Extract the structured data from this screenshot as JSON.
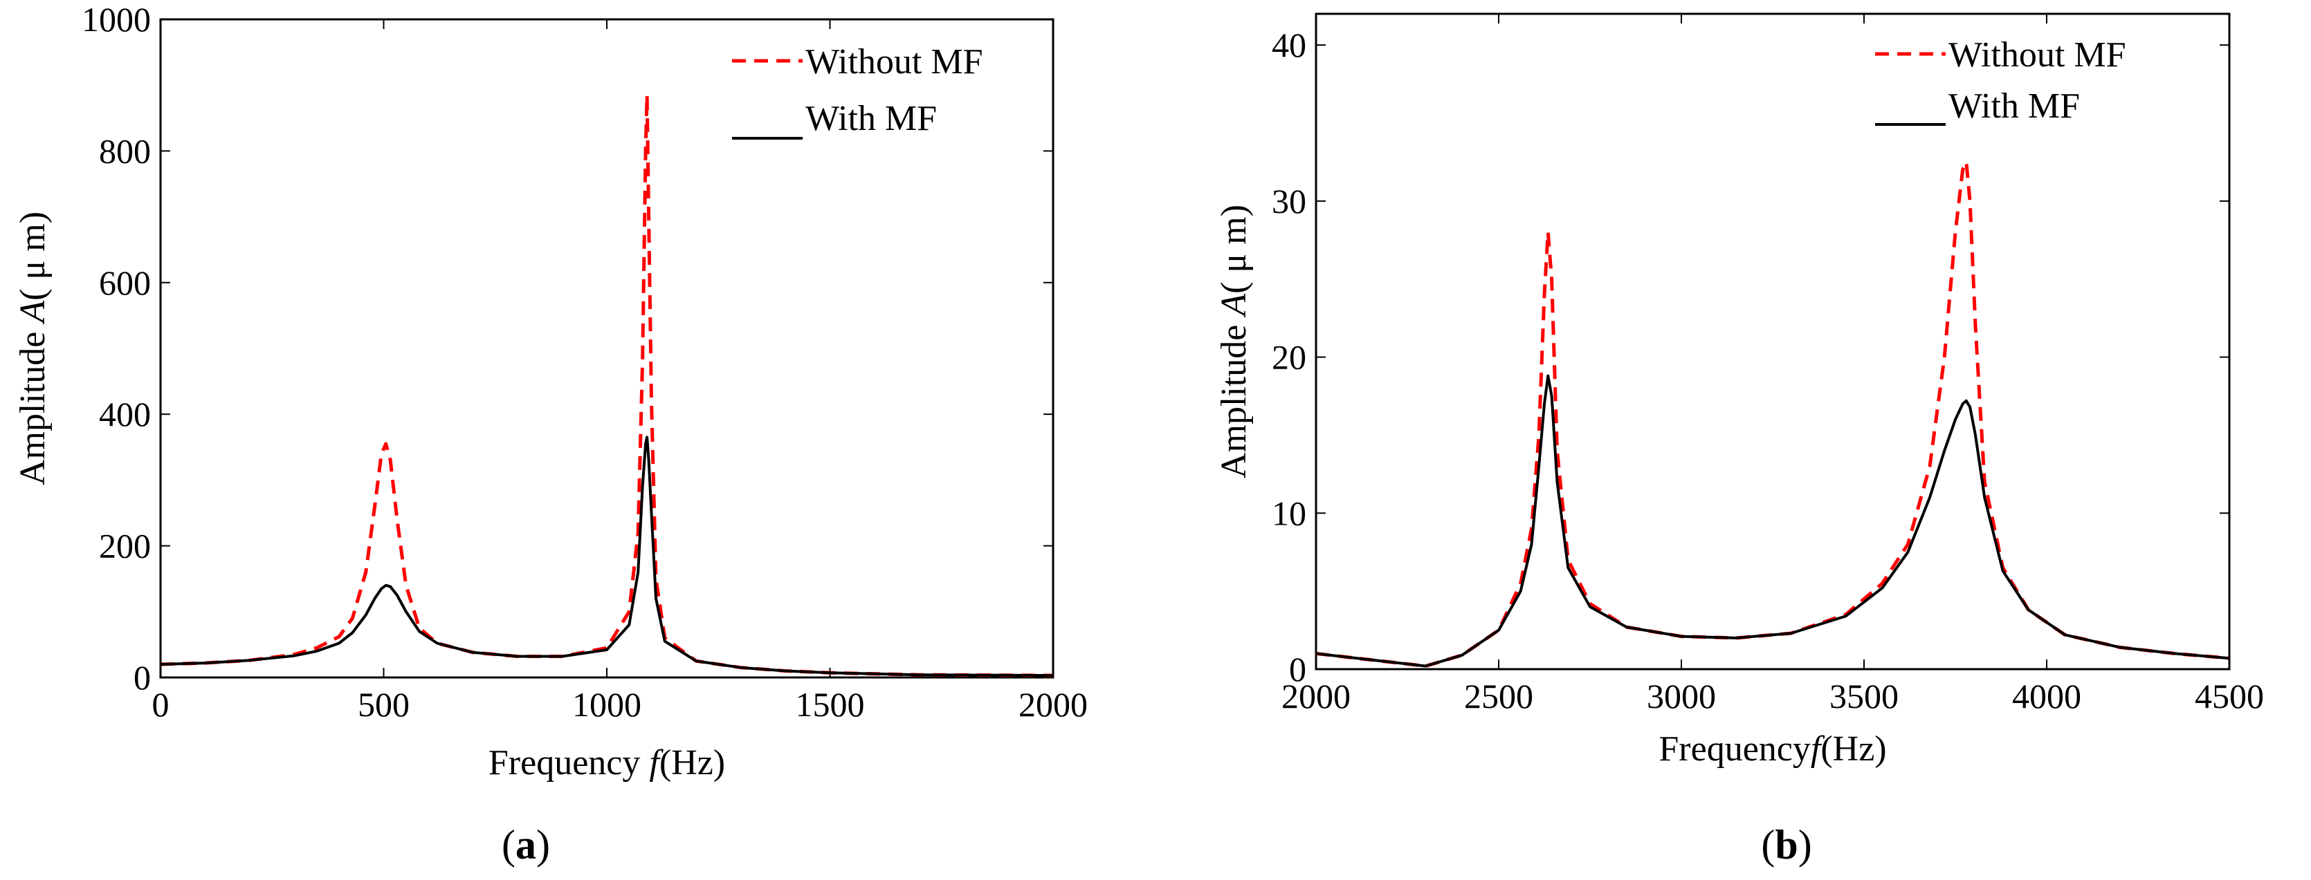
{
  "chart_data": [
    {
      "type": "line",
      "panel_label": "a",
      "xlabel": {
        "prefix": "Frequency ",
        "var": "f",
        "suffix": "(Hz)"
      },
      "ylabel": {
        "prefix": "Amplitude ",
        "var": "A",
        "suffix": "( μ m)"
      },
      "xlim": [
        0,
        2000
      ],
      "ylim": [
        0,
        1000
      ],
      "xticks": [
        "0",
        "500",
        "1000",
        "1500",
        "2000"
      ],
      "yticks": [
        "0",
        "200",
        "400",
        "600",
        "800",
        "1000"
      ],
      "grid": false,
      "legend_position": "top-right",
      "series": [
        {
          "name": "Without MF",
          "style": "dashed",
          "color": "#ff0000",
          "x": [
            0,
            100,
            200,
            300,
            350,
            400,
            430,
            460,
            480,
            495,
            505,
            515,
            530,
            550,
            580,
            620,
            700,
            800,
            900,
            1000,
            1050,
            1070,
            1080,
            1087,
            1090,
            1094,
            1100,
            1110,
            1130,
            1200,
            1300,
            1400,
            1500,
            1700,
            2000
          ],
          "y": [
            20,
            22,
            26,
            35,
            45,
            62,
            90,
            160,
            260,
            340,
            355,
            330,
            240,
            140,
            75,
            52,
            38,
            32,
            32,
            45,
            100,
            220,
            480,
            800,
            885,
            700,
            420,
            150,
            60,
            25,
            15,
            10,
            7,
            4,
            3
          ]
        },
        {
          "name": "With MF",
          "style": "solid",
          "color": "#000000",
          "x": [
            0,
            100,
            200,
            300,
            350,
            400,
            430,
            460,
            480,
            495,
            505,
            515,
            530,
            550,
            580,
            620,
            700,
            800,
            900,
            1000,
            1050,
            1070,
            1080,
            1087,
            1090,
            1094,
            1100,
            1110,
            1130,
            1200,
            1300,
            1400,
            1500,
            1700,
            2000
          ],
          "y": [
            20,
            22,
            26,
            33,
            40,
            52,
            68,
            95,
            120,
            135,
            140,
            138,
            125,
            100,
            70,
            52,
            38,
            32,
            32,
            42,
            80,
            160,
            290,
            355,
            365,
            330,
            250,
            120,
            55,
            25,
            15,
            10,
            7,
            4,
            3
          ]
        }
      ]
    },
    {
      "type": "line",
      "panel_label": "b",
      "xlabel": {
        "prefix": "Frequency",
        "var": "f",
        "suffix": "(Hz)"
      },
      "ylabel": {
        "prefix": "Amplitude ",
        "var": "A",
        "suffix": "( μ m)"
      },
      "xlim": [
        2000,
        4500
      ],
      "ylim": [
        0,
        42
      ],
      "xticks": [
        "2000",
        "2500",
        "3000",
        "3500",
        "4000",
        "4500"
      ],
      "yticks": [
        "0",
        "10",
        "20",
        "30",
        "40"
      ],
      "grid": false,
      "legend_position": "top-right",
      "series": [
        {
          "name": "Without MF",
          "style": "dashed",
          "color": "#ff0000",
          "x": [
            2000,
            2150,
            2300,
            2400,
            2500,
            2560,
            2590,
            2610,
            2625,
            2635,
            2645,
            2660,
            2690,
            2750,
            2850,
            3000,
            3150,
            3300,
            3450,
            3550,
            3620,
            3680,
            3720,
            3750,
            3770,
            3780,
            3790,
            3805,
            3830,
            3880,
            3950,
            4050,
            4200,
            4350,
            4500
          ],
          "y": [
            1.0,
            0.6,
            0.2,
            0.9,
            2.5,
            5.5,
            9,
            15,
            24,
            28,
            25,
            14,
            7,
            4.2,
            2.7,
            2.1,
            2.0,
            2.3,
            3.5,
            5.5,
            8,
            13,
            20,
            28,
            32,
            32.5,
            30,
            22,
            12,
            6.5,
            3.8,
            2.2,
            1.4,
            1.0,
            0.7
          ]
        },
        {
          "name": "With MF",
          "style": "solid",
          "color": "#000000",
          "x": [
            2000,
            2150,
            2300,
            2400,
            2500,
            2560,
            2590,
            2610,
            2625,
            2635,
            2645,
            2660,
            2690,
            2750,
            2850,
            3000,
            3150,
            3300,
            3450,
            3550,
            3620,
            3680,
            3720,
            3750,
            3770,
            3780,
            3790,
            3805,
            3830,
            3880,
            3950,
            4050,
            4200,
            4350,
            4500
          ],
          "y": [
            1.0,
            0.6,
            0.2,
            0.9,
            2.5,
            5,
            8,
            13,
            17,
            18.8,
            17.5,
            12,
            6.5,
            4.0,
            2.7,
            2.1,
            2.0,
            2.3,
            3.4,
            5.2,
            7.5,
            11,
            14,
            16,
            17,
            17.2,
            16.8,
            15,
            11,
            6.3,
            3.8,
            2.2,
            1.4,
            1.0,
            0.7
          ]
        }
      ]
    }
  ]
}
